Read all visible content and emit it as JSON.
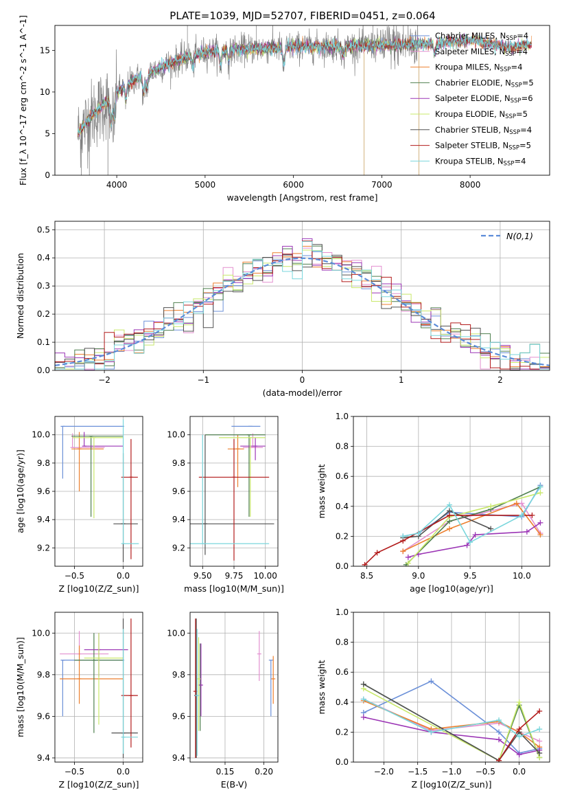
{
  "figure": {
    "title": "PLATE=1039, MJD=52707, FIBERID=0451, z=0.064"
  },
  "models": [
    {
      "name": "Chabrier MILES",
      "nssp": "4",
      "color": "#6a8fd8"
    },
    {
      "name": "Salpeter MILES",
      "nssp": "4",
      "color": "#e38fcf"
    },
    {
      "name": "Kroupa MILES",
      "nssp": "4",
      "color": "#ec7f2e"
    },
    {
      "name": "Chabrier ELODIE",
      "nssp": "5",
      "color": "#4e7f4e"
    },
    {
      "name": "Salpeter ELODIE",
      "nssp": "6",
      "color": "#9b35b5"
    },
    {
      "name": "Kroupa ELODIE",
      "nssp": "5",
      "color": "#c8e86a"
    },
    {
      "name": "Chabrier STELIB",
      "nssp": "4",
      "color": "#505050"
    },
    {
      "name": "Salpeter STELIB",
      "nssp": "5",
      "color": "#b21a1a"
    },
    {
      "name": "Kroupa STELIB",
      "nssp": "4",
      "color": "#79d6dc"
    }
  ],
  "chart_data": [
    {
      "id": "spectrum",
      "type": "line",
      "xlabel": "wavelength [Angstrom, rest frame]",
      "ylabel": "Flux [f_λ 10^-17 erg cm^-2 s^-1 A^-1]",
      "xlim": [
        3300,
        8900
      ],
      "ylim": [
        0,
        18
      ],
      "xticks": [
        4000,
        5000,
        6000,
        7000,
        8000
      ],
      "yticks": [
        0,
        5,
        10,
        15
      ],
      "grid": false,
      "legend": "top-right",
      "data_color": "#808080",
      "data_range": [
        3560,
        7420
      ],
      "spikes": [
        {
          "x": 4800,
          "y": 18
        },
        {
          "x": 5580,
          "y": 18
        },
        {
          "x": 6900,
          "y": 18
        }
      ],
      "continuum": [
        {
          "x": 3560,
          "y": 5.0
        },
        {
          "x": 3700,
          "y": 7.0
        },
        {
          "x": 3900,
          "y": 9.0
        },
        {
          "x": 4000,
          "y": 10.0
        },
        {
          "x": 4200,
          "y": 11.5
        },
        {
          "x": 4500,
          "y": 13.0
        },
        {
          "x": 4800,
          "y": 14.2
        },
        {
          "x": 5000,
          "y": 14.8
        },
        {
          "x": 5500,
          "y": 15.2
        },
        {
          "x": 6000,
          "y": 15.4
        },
        {
          "x": 6500,
          "y": 15.5
        },
        {
          "x": 7000,
          "y": 15.6
        },
        {
          "x": 7500,
          "y": 15.8
        },
        {
          "x": 8000,
          "y": 16.2
        },
        {
          "x": 8500,
          "y": 15.3
        },
        {
          "x": 8700,
          "y": 15.8
        }
      ]
    },
    {
      "id": "residuals",
      "type": "histogram",
      "xlabel": "(data-model)/error",
      "ylabel": "Normed distribution",
      "xlim": [
        -2.5,
        2.5
      ],
      "ylim": [
        0,
        0.53
      ],
      "xticks": [
        -2,
        -1,
        0,
        1,
        2
      ],
      "yticks": [
        0.0,
        0.1,
        0.2,
        0.3,
        0.4,
        0.5
      ],
      "grid": true,
      "legend": "top-right",
      "legend_label": "N(0,1)",
      "legend_color": "#5b8bd8",
      "bin_edges": [
        -2.5,
        -2.4,
        -2.3,
        -2.2,
        -2.1,
        -2.0,
        -1.9,
        -1.8,
        -1.7,
        -1.6,
        -1.5,
        -1.4,
        -1.3,
        -1.2,
        -1.1,
        -1.0,
        -0.9,
        -0.8,
        -0.7,
        -0.6,
        -0.5,
        -0.4,
        -0.3,
        -0.2,
        -0.1,
        0.0,
        0.1,
        0.2,
        0.3,
        0.4,
        0.5,
        0.6,
        0.7,
        0.8,
        0.9,
        1.0,
        1.1,
        1.2,
        1.3,
        1.4,
        1.5,
        1.6,
        1.7,
        1.8,
        1.9,
        2.0,
        2.1,
        2.2,
        2.3,
        2.4,
        2.5
      ]
    },
    {
      "id": "age_vs_z",
      "type": "errorbar",
      "xlabel": "Z [log10(Z/Z_sun)]",
      "ylabel": "age [log10(age/yr)]",
      "xlim": [
        -0.7,
        0.2
      ],
      "ylim": [
        9.07,
        10.13
      ],
      "xticks": [
        -0.5,
        0.0
      ],
      "yticks": [
        9.2,
        9.4,
        9.6,
        9.8,
        10.0
      ],
      "grid": true,
      "points": [
        {
          "x": -0.62,
          "xerr": [
            0.0,
            0.63
          ],
          "y": 10.06,
          "yerr": [
            0.37,
            0.0
          ]
        },
        {
          "x": -0.52,
          "xerr": [
            0.0,
            0.33
          ],
          "y": 9.91,
          "yerr": [
            0.0,
            0.1
          ]
        },
        {
          "x": -0.45,
          "xerr": [
            0.08,
            0.25
          ],
          "y": 9.9,
          "yerr": [
            0.3,
            0.12
          ]
        },
        {
          "x": -0.33,
          "xerr": [
            0.2,
            0.33
          ],
          "y": 9.99,
          "yerr": [
            0.57,
            0.0
          ]
        },
        {
          "x": -0.4,
          "xerr": [
            0.0,
            0.4
          ],
          "y": 9.92,
          "yerr": [
            0.0,
            0.1
          ]
        },
        {
          "x": -0.3,
          "xerr": [
            0.22,
            0.3
          ],
          "y": 9.98,
          "yerr": [
            0.57,
            0.0
          ]
        },
        {
          "x": 0.0,
          "xerr": [
            0.1,
            0.15
          ],
          "y": 9.37,
          "yerr": [
            0.27,
            0.5
          ]
        },
        {
          "x": 0.08,
          "xerr": [
            0.1,
            0.07
          ],
          "y": 9.7,
          "yerr": [
            0.58,
            0.27
          ]
        },
        {
          "x": 0.0,
          "xerr": [
            0.0,
            0.16
          ],
          "y": 9.23,
          "yerr": [
            0.0,
            0.88
          ]
        }
      ]
    },
    {
      "id": "age_vs_mass",
      "type": "errorbar",
      "xlabel": "mass [log10(M/M_sun)]",
      "ylabel": "",
      "xlim": [
        9.4,
        10.1
      ],
      "ylim": [
        9.07,
        10.13
      ],
      "xticks": [
        9.5,
        9.75,
        10.0
      ],
      "yticks": [
        9.2,
        9.4,
        9.6,
        9.8,
        10.0
      ],
      "grid": true,
      "points": [
        {
          "x": 9.88,
          "xerr": [
            0.15,
            0.08
          ],
          "y": 10.06,
          "yerr": [
            0.0,
            0.0
          ]
        },
        {
          "x": 9.9,
          "xerr": [
            0.08,
            0.08
          ],
          "y": 9.91,
          "yerr": [
            0.0,
            0.1
          ]
        },
        {
          "x": 9.78,
          "xerr": [
            0.08,
            0.05
          ],
          "y": 9.9,
          "yerr": [
            0.27,
            0.1
          ]
        },
        {
          "x": 9.87,
          "xerr": [
            0.35,
            0.13
          ],
          "y": 10.0,
          "yerr": [
            0.58,
            0.0
          ]
        },
        {
          "x": 9.92,
          "xerr": [
            0.12,
            0.08
          ],
          "y": 9.92,
          "yerr": [
            0.1,
            0.06
          ]
        },
        {
          "x": 9.88,
          "xerr": [
            0.25,
            0.12
          ],
          "y": 9.98,
          "yerr": [
            0.56,
            0.0
          ]
        },
        {
          "x": 9.52,
          "xerr": [
            0.12,
            0.55
          ],
          "y": 9.37,
          "yerr": [
            0.22,
            0.63
          ]
        },
        {
          "x": 9.75,
          "xerr": [
            0.28,
            0.28
          ],
          "y": 9.7,
          "yerr": [
            0.59,
            0.27
          ]
        },
        {
          "x": 9.5,
          "xerr": [
            0.1,
            0.53
          ],
          "y": 9.23,
          "yerr": [
            0.0,
            0.77
          ]
        }
      ]
    },
    {
      "id": "massweight_vs_age",
      "type": "line",
      "xlabel": "age [log10(age/yr)]",
      "ylabel": "mass weight",
      "xlim": [
        8.37,
        10.27
      ],
      "ylim": [
        0,
        1.0
      ],
      "xticks": [
        8.5,
        9.0,
        9.5,
        10.0
      ],
      "yticks": [
        0.0,
        0.2,
        0.4,
        0.6,
        0.8,
        1.0
      ],
      "grid": true,
      "series": [
        {
          "x": [
            8.85,
            9.0,
            9.3,
            10.0,
            10.18
          ],
          "y": [
            0.2,
            0.22,
            0.36,
            0.33,
            0.54
          ]
        },
        {
          "x": [
            8.85,
            9.3,
            10.0,
            10.18
          ],
          "y": [
            0.1,
            0.3,
            0.42,
            0.22
          ]
        },
        {
          "x": [
            8.85,
            9.3,
            9.95,
            10.18
          ],
          "y": [
            0.1,
            0.25,
            0.42,
            0.21
          ]
        },
        {
          "x": [
            8.88,
            9.3,
            9.7,
            10.18
          ],
          "y": [
            0.01,
            0.3,
            0.38,
            0.53
          ]
        },
        {
          "x": [
            8.9,
            9.0,
            9.47,
            9.55,
            10.05,
            10.18
          ],
          "y": [
            0.06,
            0.08,
            0.14,
            0.21,
            0.23,
            0.29
          ]
        },
        {
          "x": [
            8.9,
            9.3,
            9.7,
            10.18
          ],
          "y": [
            0.02,
            0.33,
            0.4,
            0.49
          ]
        },
        {
          "x": [
            8.85,
            9.0,
            9.3,
            9.7
          ],
          "y": [
            0.19,
            0.2,
            0.37,
            0.25
          ]
        },
        {
          "x": [
            8.48,
            8.6,
            8.85,
            9.3,
            10.1
          ],
          "y": [
            0.01,
            0.09,
            0.17,
            0.34,
            0.34
          ]
        },
        {
          "x": [
            8.85,
            9.0,
            9.3,
            9.5,
            10.0,
            10.18
          ],
          "y": [
            0.2,
            0.22,
            0.41,
            0.16,
            0.34,
            0.53
          ]
        }
      ]
    },
    {
      "id": "mass_vs_z",
      "type": "errorbar",
      "xlabel": "Z [log10(Z/Z_sun)]",
      "ylabel": "mass [log10(M/M_sun)]",
      "xlim": [
        -0.7,
        0.2
      ],
      "ylim": [
        9.38,
        10.1
      ],
      "xticks": [
        -0.5,
        0.0
      ],
      "yticks": [
        9.4,
        9.6,
        9.8,
        10.0
      ],
      "grid": true,
      "points": [
        {
          "x": -0.62,
          "xerr": [
            0.0,
            0.63
          ],
          "y": 9.87,
          "yerr": [
            0.27,
            0.0
          ]
        },
        {
          "x": -0.45,
          "xerr": [
            0.2,
            0.3
          ],
          "y": 9.9,
          "yerr": [
            0.0,
            0.11
          ]
        },
        {
          "x": -0.45,
          "xerr": [
            0.2,
            0.45
          ],
          "y": 9.78,
          "yerr": [
            0.12,
            0.16
          ]
        },
        {
          "x": -0.3,
          "xerr": [
            0.2,
            0.3
          ],
          "y": 9.87,
          "yerr": [
            0.35,
            0.13
          ]
        },
        {
          "x": -0.25,
          "xerr": [
            0.15,
            0.3
          ],
          "y": 9.92,
          "yerr": [
            0.13,
            0.08
          ]
        },
        {
          "x": -0.25,
          "xerr": [
            0.15,
            0.25
          ],
          "y": 9.88,
          "yerr": [
            0.32,
            0.12
          ]
        },
        {
          "x": 0.0,
          "xerr": [
            0.12,
            0.15
          ],
          "y": 9.52,
          "yerr": [
            0.12,
            0.55
          ]
        },
        {
          "x": 0.08,
          "xerr": [
            0.1,
            0.07
          ],
          "y": 9.7,
          "yerr": [
            0.25,
            0.37
          ]
        },
        {
          "x": 0.0,
          "xerr": [
            0.0,
            0.15
          ],
          "y": 9.5,
          "yerr": [
            0.08,
            0.52
          ]
        }
      ]
    },
    {
      "id": "mass_vs_ebv",
      "type": "errorbar",
      "xlabel": "E(B-V)",
      "ylabel": "",
      "xlim": [
        0.105,
        0.218
      ],
      "ylim": [
        9.38,
        10.1
      ],
      "xticks": [
        0.15,
        0.2
      ],
      "yticks": [
        9.4,
        9.6,
        9.8,
        10.0
      ],
      "grid": true,
      "points": [
        {
          "x": 0.209,
          "xerr": [
            0,
            0
          ],
          "y": 9.87,
          "yerr": [
            0.27,
            0.0
          ]
        },
        {
          "x": 0.194,
          "xerr": [
            0,
            0
          ],
          "y": 9.9,
          "yerr": [
            0.13,
            0.11
          ]
        },
        {
          "x": 0.212,
          "xerr": [
            0,
            0
          ],
          "y": 9.78,
          "yerr": [
            0.12,
            0.11
          ]
        },
        {
          "x": 0.118,
          "xerr": [
            0,
            0
          ],
          "y": 9.75,
          "yerr": [
            0.22,
            0.2
          ]
        },
        {
          "x": 0.119,
          "xerr": [
            0,
            0
          ],
          "y": 9.75,
          "yerr": [
            0.15,
            0.2
          ]
        },
        {
          "x": 0.116,
          "xerr": [
            0,
            0
          ],
          "y": 9.78,
          "yerr": [
            0.25,
            0.2
          ]
        },
        {
          "x": 0.113,
          "xerr": [
            0,
            0
          ],
          "y": 9.7,
          "yerr": [
            0.3,
            0.37
          ]
        },
        {
          "x": 0.112,
          "xerr": [
            0,
            0
          ],
          "y": 9.72,
          "yerr": [
            0.32,
            0.35
          ]
        },
        {
          "x": 0.114,
          "xerr": [
            0,
            0
          ],
          "y": 9.7,
          "yerr": [
            0.29,
            0.32
          ]
        }
      ]
    },
    {
      "id": "massweight_vs_z",
      "type": "line",
      "xlabel": "Z [log10(Z/Z_sun)]",
      "ylabel": "mass weight",
      "xlim": [
        -2.45,
        0.45
      ],
      "ylim": [
        0,
        1.0
      ],
      "xticks": [
        -2.0,
        -1.5,
        -1.0,
        -0.5,
        0.0
      ],
      "yticks": [
        0.0,
        0.2,
        0.4,
        0.6,
        0.8,
        1.0
      ],
      "grid": true,
      "series": [
        {
          "x": [
            -2.3,
            -1.3,
            -0.3,
            0.0,
            0.3
          ],
          "y": [
            0.33,
            0.54,
            0.2,
            0.06,
            0.09
          ]
        },
        {
          "x": [
            -2.3,
            -1.3,
            -0.3,
            0.0,
            0.3
          ],
          "y": [
            0.42,
            0.21,
            0.26,
            0.2,
            0.14
          ]
        },
        {
          "x": [
            -2.3,
            -1.3,
            -0.3,
            0.0,
            0.3
          ],
          "y": [
            0.41,
            0.22,
            0.27,
            0.2,
            0.1
          ]
        },
        {
          "x": [
            -2.3,
            -0.3,
            0.0,
            0.3
          ],
          "y": [
            0.52,
            0.01,
            0.38,
            0.03
          ]
        },
        {
          "x": [
            -2.3,
            -1.3,
            -0.3,
            0.0,
            0.3
          ],
          "y": [
            0.3,
            0.2,
            0.15,
            0.05,
            0.08
          ]
        },
        {
          "x": [
            -2.3,
            -0.3,
            0.0,
            0.3
          ],
          "y": [
            0.49,
            0.01,
            0.4,
            0.03
          ]
        },
        {
          "x": [
            -2.3,
            -0.3,
            0.0,
            0.3
          ],
          "y": [
            0.52,
            0.01,
            0.2,
            0.06
          ]
        },
        {
          "x": [
            -0.3,
            0.0,
            0.3
          ],
          "y": [
            0.01,
            0.22,
            0.34
          ]
        },
        {
          "x": [
            -2.3,
            -1.3,
            -0.3,
            0.0,
            0.3
          ],
          "y": [
            0.42,
            0.2,
            0.28,
            0.17,
            0.22
          ]
        }
      ]
    }
  ]
}
